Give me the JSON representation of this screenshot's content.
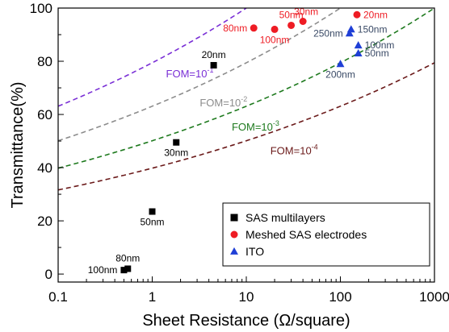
{
  "chart_data": {
    "type": "scatter",
    "title": "",
    "xlabel": "Sheet Resistance (Ω/square)",
    "ylabel": "Transmittance(%)",
    "xscale": "log",
    "xlim": [
      0.1,
      1000
    ],
    "ylim": [
      -3,
      100
    ],
    "xticks": [
      {
        "value": 0.1,
        "label": "0.1"
      },
      {
        "value": 1,
        "label": "1"
      },
      {
        "value": 10,
        "label": "10"
      },
      {
        "value": 100,
        "label": "100"
      },
      {
        "value": 1000,
        "label": "1000"
      }
    ],
    "yticks": [
      {
        "value": 0,
        "label": "0"
      },
      {
        "value": 20,
        "label": "20"
      },
      {
        "value": 40,
        "label": "40"
      },
      {
        "value": 60,
        "label": "60"
      },
      {
        "value": 80,
        "label": "80"
      },
      {
        "value": 100,
        "label": "100"
      }
    ],
    "grid": false,
    "legend_position": "bottom-right",
    "series": [
      {
        "name": "SAS multilayers",
        "marker": "square",
        "color": "#000000",
        "label_color": "#000000",
        "points": [
          {
            "x": 0.5,
            "y": 1.5,
            "label": "100nm",
            "label_side": "left"
          },
          {
            "x": 0.55,
            "y": 2,
            "label": "80nm",
            "label_side": "above"
          },
          {
            "x": 1.0,
            "y": 23.5,
            "label": "50nm",
            "label_side": "below"
          },
          {
            "x": 1.8,
            "y": 49.5,
            "label": "30nm",
            "label_side": "below"
          },
          {
            "x": 4.5,
            "y": 78.5,
            "label": "20nm",
            "label_side": "above"
          }
        ]
      },
      {
        "name": "Meshed SAS electrodes",
        "marker": "circle",
        "color": "#ee1c24",
        "label_color": "#ee1c24",
        "points": [
          {
            "x": 12,
            "y": 92.5,
            "label": "80nm",
            "label_side": "left"
          },
          {
            "x": 20,
            "y": 92,
            "label": "100nm",
            "label_side": "below"
          },
          {
            "x": 30,
            "y": 93.5,
            "label": "50nm",
            "label_side": "above"
          },
          {
            "x": 40,
            "y": 95,
            "label": "30nm",
            "label_side": "above-right"
          },
          {
            "x": 150,
            "y": 97.5,
            "label": "20nm",
            "label_side": "right"
          }
        ]
      },
      {
        "name": "ITO",
        "marker": "triangle",
        "color": "#1f3fd6",
        "label_color": "#3a4a66",
        "points": [
          {
            "x": 100,
            "y": 79,
            "label": "200nm",
            "label_side": "below"
          },
          {
            "x": 125,
            "y": 90.5,
            "label": "250nm",
            "label_side": "left"
          },
          {
            "x": 130,
            "y": 92,
            "label": "150nm",
            "label_side": "right"
          },
          {
            "x": 155,
            "y": 86,
            "label": "100nm",
            "label_side": "right"
          },
          {
            "x": 155,
            "y": 83,
            "label": "50nm",
            "label_side": "right"
          }
        ]
      }
    ],
    "fom_curves": [
      {
        "fom_exponent": -1,
        "fom": 0.1,
        "label_text": "FOM=10",
        "label_exp": "-1",
        "color": "#7a2fd6",
        "label_x": 1.4,
        "label_y": 74
      },
      {
        "fom_exponent": -2,
        "fom": 0.01,
        "label_text": "FOM=10",
        "label_exp": "-2",
        "color": "#8c8c8c",
        "label_x": 3.2,
        "label_y": 63
      },
      {
        "fom_exponent": -3,
        "fom": 0.001,
        "label_text": "FOM=10",
        "label_exp": "-3",
        "color": "#1e7a1e",
        "label_x": 7.0,
        "label_y": 54
      },
      {
        "fom_exponent": -4,
        "fom": 0.0001,
        "label_text": "FOM=10",
        "label_exp": "-4",
        "color": "#6b1a1a",
        "label_x": 18,
        "label_y": 45
      }
    ]
  }
}
